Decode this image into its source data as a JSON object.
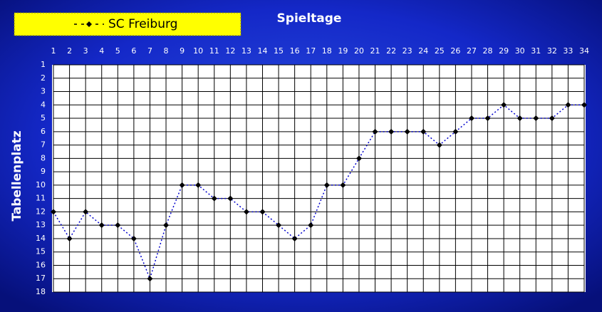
{
  "chart_data": {
    "type": "line",
    "title": "Spieltage",
    "ylabel": "Tabellenplatz",
    "x": [
      1,
      2,
      3,
      4,
      5,
      6,
      7,
      8,
      9,
      10,
      11,
      12,
      13,
      14,
      15,
      16,
      17,
      18,
      19,
      20,
      21,
      22,
      23,
      24,
      25,
      26,
      27,
      28,
      29,
      30,
      31,
      32,
      33,
      34
    ],
    "series": [
      {
        "name": "SC Freiburg",
        "color": "#0000cc",
        "values": [
          12,
          14,
          12,
          13,
          13,
          14,
          17,
          13,
          10,
          10,
          11,
          11,
          12,
          12,
          13,
          14,
          13,
          10,
          10,
          8,
          6,
          6,
          6,
          6,
          7,
          6,
          5,
          5,
          4,
          5,
          5,
          5,
          4,
          4
        ]
      }
    ],
    "xlim": [
      1,
      34
    ],
    "xticks": [
      1,
      2,
      3,
      4,
      5,
      6,
      7,
      8,
      9,
      10,
      11,
      12,
      13,
      14,
      15,
      16,
      17,
      18,
      19,
      20,
      21,
      22,
      23,
      24,
      25,
      26,
      27,
      28,
      29,
      30,
      31,
      32,
      33,
      34
    ],
    "ylim": [
      1,
      18
    ],
    "yticks": [
      1,
      2,
      3,
      4,
      5,
      6,
      7,
      8,
      9,
      10,
      11,
      12,
      13,
      14,
      15,
      16,
      17,
      18
    ],
    "y_inverted": true,
    "grid": true,
    "legend": "top-left"
  }
}
